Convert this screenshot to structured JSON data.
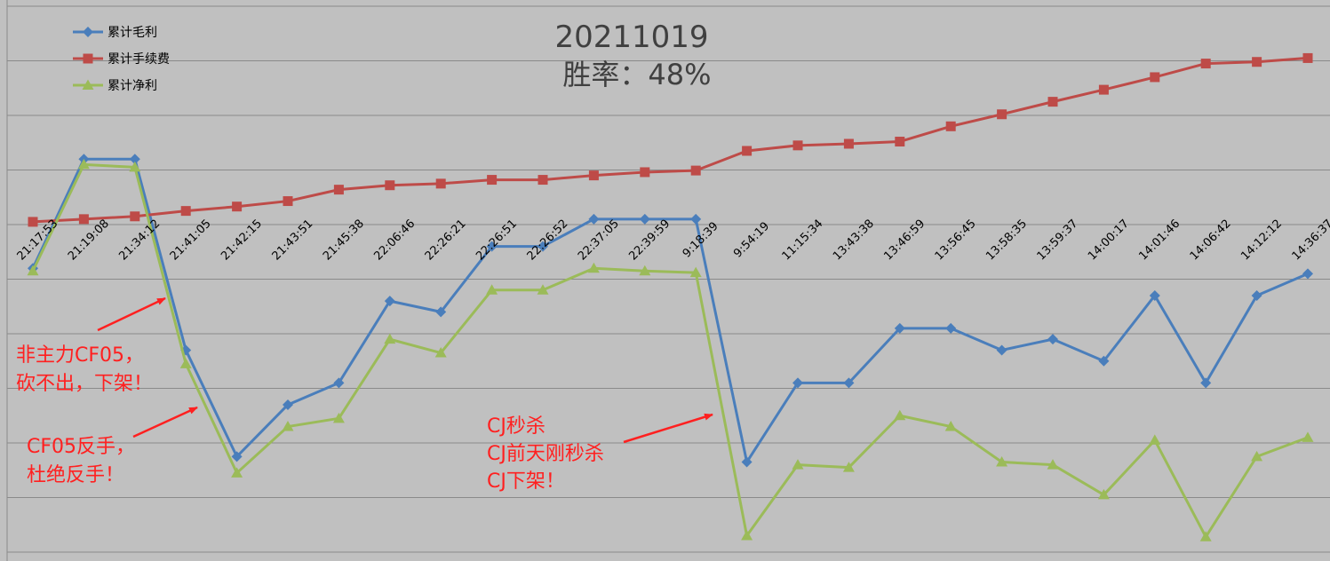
{
  "chart_data": {
    "type": "line",
    "title": "20211019",
    "subtitle": "胜率：48%",
    "categories": [
      "21:17:53",
      "21:19:08",
      "21:34:12",
      "21:41:05",
      "21:42:15",
      "21:43:51",
      "21:45:38",
      "22:06:46",
      "22:26:21",
      "22:26:51",
      "22:26:52",
      "22:37:05",
      "22:39:59",
      "9:18:39",
      "9:54:19",
      "11:15:34",
      "13:43:38",
      "13:46:59",
      "13:56:45",
      "13:58:35",
      "13:59:37",
      "14:00:17",
      "14:01:46",
      "14:06:42",
      "14:12:12",
      "14:36:37"
    ],
    "series": [
      {
        "name": "累计毛利",
        "color": "#4a7ebb",
        "marker": "diamond",
        "values": [
          -0.8,
          1.2,
          1.2,
          -2.3,
          -4.25,
          -3.3,
          -2.9,
          -1.4,
          -1.6,
          -0.4,
          -0.4,
          0.1,
          0.1,
          0.1,
          -4.35,
          -2.9,
          -2.9,
          -1.9,
          -1.9,
          -2.3,
          -2.1,
          -2.5,
          -1.3,
          -2.9,
          -1.3,
          -0.9
        ]
      },
      {
        "name": "累计手续费",
        "color": "#be4b48",
        "marker": "square",
        "values": [
          0.05,
          0.1,
          0.15,
          0.25,
          0.33,
          0.43,
          0.64,
          0.72,
          0.75,
          0.82,
          0.82,
          0.9,
          0.96,
          0.99,
          1.35,
          1.45,
          1.48,
          1.52,
          1.8,
          2.02,
          2.25,
          2.47,
          2.7,
          2.95,
          2.98,
          3.05
        ]
      },
      {
        "name": "累计净利",
        "color": "#9bbb59",
        "marker": "triangle",
        "values": [
          -0.85,
          1.1,
          1.05,
          -2.55,
          -4.55,
          -3.7,
          -3.55,
          -2.1,
          -2.35,
          -1.2,
          -1.2,
          -0.8,
          -0.85,
          -0.88,
          -5.7,
          -4.4,
          -4.45,
          -3.5,
          -3.7,
          -4.35,
          -4.4,
          -4.95,
          -3.95,
          -5.72,
          -4.25,
          -3.9
        ]
      }
    ],
    "ylim": [
      -6,
      4
    ],
    "grid": true,
    "legend_position": "top-left",
    "annotations": [
      {
        "lines": [
          "非主力CF05，",
          "砍不出，下架！"
        ]
      },
      {
        "lines": [
          "CF05反手，",
          "杜绝反手！"
        ]
      },
      {
        "lines": [
          "CJ秒杀",
          "CJ前天刚秒杀",
          "CJ下架！"
        ]
      }
    ]
  }
}
